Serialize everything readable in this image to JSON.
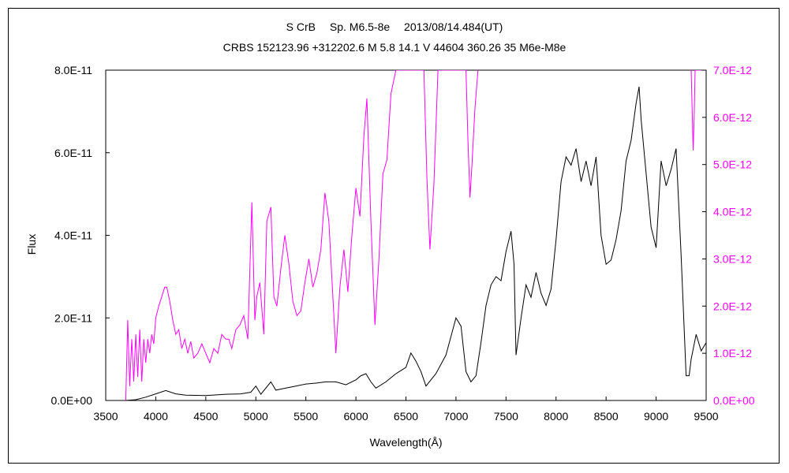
{
  "chart_data": {
    "type": "line",
    "title": "S CrB　 Sp. M6.5-8e　 2013/08/14.484(UT)",
    "subtitle": "CRBS 152123.96 +312202.6 M 5.8 14.1 V 44604 360.26 35 M6e-M8e",
    "xlabel": "Wavelength(Å)",
    "ylabel": "Flux",
    "xlim": [
      3500,
      9500
    ],
    "xticks": [
      3500,
      4000,
      4500,
      5000,
      5500,
      6000,
      6500,
      7000,
      7500,
      8000,
      8500,
      9000,
      9500
    ],
    "ylim": [
      0,
      8e-11
    ],
    "yticks": [
      "0.0E+00",
      "2.0E-11",
      "4.0E-11",
      "6.0E-11",
      "8.0E-11"
    ],
    "y2lim": [
      0,
      7e-12
    ],
    "y2ticks": [
      "0.0E+00",
      "1.0E-12",
      "2.0E-12",
      "3.0E-12",
      "4.0E-12",
      "5.0E-12",
      "6.0E-12",
      "7.0E-12"
    ],
    "colors": {
      "primary": "#000000",
      "secondary": "#ff00ff"
    },
    "series": [
      {
        "axis": "left",
        "color": "#000000",
        "x": [
          3700,
          3800,
          3900,
          4000,
          4100,
          4200,
          4300,
          4500,
          4700,
          4850,
          4950,
          5000,
          5050,
          5150,
          5200,
          5300,
          5400,
          5500,
          5600,
          5700,
          5800,
          5900,
          6000,
          6050,
          6100,
          6150,
          6200,
          6300,
          6400,
          6500,
          6550,
          6600,
          6650,
          6700,
          6800,
          6900,
          6950,
          7000,
          7050,
          7100,
          7150,
          7200,
          7250,
          7300,
          7350,
          7400,
          7450,
          7500,
          7550,
          7580,
          7600,
          7650,
          7700,
          7750,
          7800,
          7850,
          7900,
          7950,
          8000,
          8050,
          8100,
          8150,
          8200,
          8250,
          8300,
          8350,
          8400,
          8450,
          8500,
          8550,
          8600,
          8650,
          8700,
          8750,
          8800,
          8830,
          8850,
          8900,
          8950,
          9000,
          9050,
          9100,
          9150,
          9200,
          9250,
          9300,
          9330,
          9350,
          9400,
          9450,
          9500
        ],
        "y": [
          0.0,
          2e-13,
          8e-13,
          1.6e-12,
          2.4e-12,
          1.6e-12,
          1.3e-12,
          1.2e-12,
          1.5e-12,
          1.6e-12,
          2e-12,
          3.5e-12,
          1.5e-12,
          4.5e-12,
          2.5e-12,
          3e-12,
          3.5e-12,
          4e-12,
          4.2e-12,
          4.5e-12,
          4.5e-12,
          3.8e-12,
          5e-12,
          6e-12,
          6.5e-12,
          4.5e-12,
          3e-12,
          4.5e-12,
          6.5e-12,
          8e-12,
          1.15e-11,
          9.5e-12,
          7e-12,
          3.5e-12,
          6.5e-12,
          1.1e-11,
          1.55e-11,
          2e-11,
          1.8e-11,
          7e-12,
          4.5e-12,
          6e-12,
          1.4e-11,
          2.3e-11,
          2.8e-11,
          3e-11,
          2.9e-11,
          3.6e-11,
          4.1e-11,
          3.3e-11,
          1.1e-11,
          2e-11,
          2.8e-11,
          2.5e-11,
          3.1e-11,
          2.6e-11,
          2.3e-11,
          2.7e-11,
          3.9e-11,
          5.3e-11,
          5.9e-11,
          5.7e-11,
          6.1e-11,
          5.3e-11,
          5.8e-11,
          5.2e-11,
          5.9e-11,
          4e-11,
          3.3e-11,
          3.4e-11,
          3.9e-11,
          4.6e-11,
          5.8e-11,
          6.3e-11,
          7.2e-11,
          7.6e-11,
          6.8e-11,
          5.5e-11,
          4.2e-11,
          3.7e-11,
          5.8e-11,
          5.2e-11,
          5.6e-11,
          6.1e-11,
          3.5e-11,
          6e-12,
          6e-12,
          1e-11,
          1.6e-11,
          1.2e-11,
          1.4e-11
        ]
      },
      {
        "axis": "right",
        "color": "#ff00ff",
        "x": [
          3700,
          3720,
          3740,
          3760,
          3780,
          3800,
          3820,
          3840,
          3860,
          3880,
          3900,
          3920,
          3940,
          3960,
          3980,
          4000,
          4030,
          4060,
          4090,
          4110,
          4140,
          4170,
          4200,
          4230,
          4260,
          4290,
          4320,
          4350,
          4380,
          4420,
          4460,
          4500,
          4540,
          4580,
          4620,
          4660,
          4700,
          4730,
          4760,
          4800,
          4840,
          4880,
          4920,
          4960,
          4990,
          5010,
          5040,
          5080,
          5110,
          5150,
          5180,
          5210,
          5250,
          5290,
          5330,
          5370,
          5410,
          5450,
          5490,
          5530,
          5570,
          5610,
          5650,
          5690,
          5730,
          5760,
          5800,
          5840,
          5880,
          5920,
          5960,
          6000,
          6040,
          6080,
          6110,
          6150,
          6190,
          6230,
          6270,
          6310,
          6350,
          6400,
          6440,
          6480,
          6520,
          6560,
          6600,
          6640,
          6680,
          6710,
          6740,
          6780,
          6820,
          6860,
          6900,
          6950,
          7000,
          7050,
          7080,
          7100,
          7120,
          7140,
          7160,
          7190,
          7220,
          9350,
          9360,
          9370,
          9380,
          9390,
          9400,
          9430,
          9450
        ],
        "y": [
          0.0,
          1.7e-12,
          3e-13,
          1.3e-12,
          4e-13,
          1.4e-12,
          5e-13,
          1.5e-12,
          4e-13,
          1.3e-12,
          8e-13,
          1.3e-12,
          1e-12,
          1.4e-12,
          1.2e-12,
          1.75e-12,
          2e-12,
          2.2e-12,
          2.4e-12,
          2.4e-12,
          2.1e-12,
          1.7e-12,
          1.4e-12,
          1.5e-12,
          1.1e-12,
          1.3e-12,
          1e-12,
          1.25e-12,
          9e-13,
          1e-12,
          1.2e-12,
          1e-12,
          8e-13,
          1.1e-12,
          1e-12,
          1.4e-12,
          1.3e-12,
          1.3e-12,
          1.1e-12,
          1.5e-12,
          1.6e-12,
          1.8e-12,
          1.3e-12,
          4.2e-12,
          1.7e-12,
          2.2e-12,
          2.5e-12,
          1.4e-12,
          3.8e-12,
          4.1e-12,
          2.2e-12,
          2e-12,
          2.8e-12,
          3.5e-12,
          2.9e-12,
          2.1e-12,
          1.8e-12,
          1.9e-12,
          2.5e-12,
          3e-12,
          2.4e-12,
          2.7e-12,
          3.2e-12,
          4.4e-12,
          3.8e-12,
          2.6e-12,
          1e-12,
          2.4e-12,
          3.2e-12,
          2.3e-12,
          3.5e-12,
          4.5e-12,
          3.9e-12,
          5.6e-12,
          6.4e-12,
          3.8e-12,
          1.6e-12,
          3e-12,
          4.8e-12,
          5.1e-12,
          6.5e-12,
          7e-12,
          7e-12,
          7e-12,
          7e-12,
          7e-12,
          7e-12,
          7e-12,
          7e-12,
          4.7e-12,
          3.2e-12,
          4.6e-12,
          7e-12,
          7e-12,
          7e-12,
          7e-12,
          7e-12,
          7e-12,
          7e-12,
          7e-12,
          5.5e-12,
          4.3e-12,
          5e-12,
          6.2e-12,
          7e-12,
          7e-12,
          6.2e-12,
          5.3e-12,
          6e-12,
          7e-12,
          7e-12,
          7e-12,
          7e-12
        ]
      }
    ]
  }
}
